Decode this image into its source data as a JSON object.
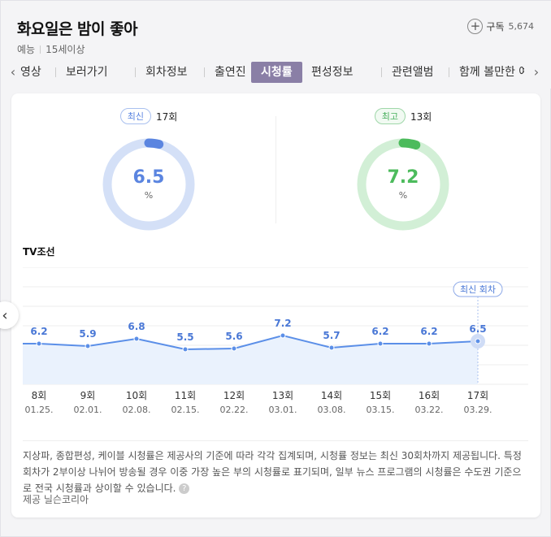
{
  "program": {
    "title": "화요일은 밤이 좋아",
    "genre": "예능",
    "rating": "15세이상"
  },
  "subscribe": {
    "label": "구독",
    "count": "5,674"
  },
  "tabs": [
    {
      "label": "영상",
      "active": false
    },
    {
      "label": "보러가기",
      "active": false
    },
    {
      "label": "회차정보",
      "active": false
    },
    {
      "label": "출연진",
      "active": false
    },
    {
      "label": "시청률",
      "active": true
    },
    {
      "label": "편성정보",
      "active": false
    },
    {
      "label": "관련앨범",
      "active": false
    },
    {
      "label": "함께 볼만한 예",
      "active": false
    }
  ],
  "latest": {
    "badge": "최신",
    "episode": "17회",
    "value": "6.5",
    "unit": "%",
    "fraction": 0.04,
    "color": "#5b85e0",
    "track": "#d4e0f7"
  },
  "best": {
    "badge": "최고",
    "episode": "13회",
    "value": "7.2",
    "unit": "%",
    "fraction": 0.05,
    "color": "#4cbb5c",
    "track": "#d2efd6"
  },
  "channel": "TV조선",
  "chart_data": {
    "type": "line",
    "x": [
      "8회",
      "9회",
      "10회",
      "11회",
      "12회",
      "13회",
      "14회",
      "15회",
      "16회",
      "17회"
    ],
    "dates": [
      "01.25.",
      "02.01.",
      "02.08.",
      "02.15.",
      "02.22.",
      "03.01.",
      "03.08.",
      "03.15.",
      "03.22.",
      "03.29."
    ],
    "values": [
      6.2,
      5.9,
      6.8,
      5.5,
      5.6,
      7.2,
      5.7,
      6.2,
      6.2,
      6.5
    ],
    "labels": [
      "6.2",
      "5.9",
      "6.8",
      "5.5",
      "5.6",
      "7.2",
      "5.7",
      "6.2",
      "6.2",
      "6.5"
    ],
    "latest_callout": "최신 회차",
    "line_color": "#5b8fe8",
    "fill_color": "#eaf2fd"
  },
  "note": "지상파, 종합편성, 케이블 시청률은 제공사의 기준에 따라 각각 집계되며, 시청률 정보는 최신 30회차까지 제공됩니다. 특정 회차가 2부이상 나뉘어 방송될 경우 이중 가장 높은 부의 시청률로 표기되며, 일부 뉴스 프로그램의 시청률은 수도권 기준으로 전국 시청률과 상이할 수 있습니다.",
  "help_glyph": "?",
  "source": "제공 닐슨코리아",
  "icons": {
    "prev_tab": "‹",
    "next_tab": "›",
    "plus": "+",
    "side_prev": "‹"
  }
}
